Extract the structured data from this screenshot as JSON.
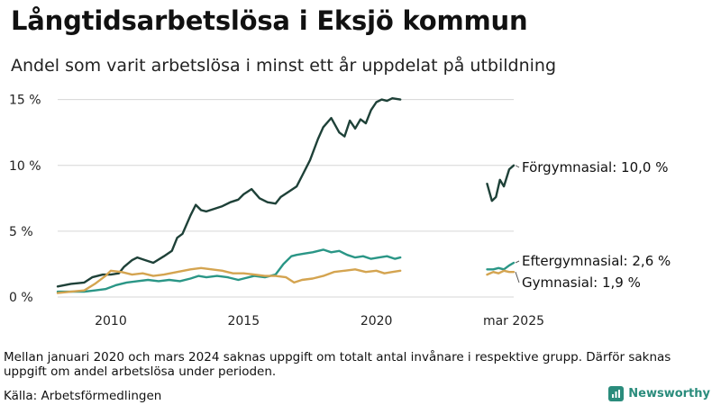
{
  "title": "Långtidsarbetslösa i Eksjö kommun",
  "subtitle": "Andel som varit arbetslösa i minst ett år uppdelat på utbildning",
  "note": "Mellan januari 2020 och mars 2024 saknas uppgift om totalt antal invånare i respektive grupp. Därför saknas uppgift om andel arbetslösa under perioden.",
  "source": "Källa: Arbetsförmedlingen",
  "brand": "Newsworthy",
  "colors": {
    "forgymnasial": "#1e4138",
    "eftergymnasial": "#2a9686",
    "gymnasial": "#d4a450",
    "grid": "#d6d6d6",
    "brand": "#2a8c7c"
  },
  "chart_data": {
    "type": "line",
    "ylim": [
      0,
      16
    ],
    "yticks": [
      0,
      5,
      10,
      15
    ],
    "ytick_labels": [
      "0 %",
      "5 %",
      "10 %",
      "15 %"
    ],
    "xticks": [
      2010,
      2015,
      2020,
      2025.17
    ],
    "xtick_labels": [
      "2010",
      "2015",
      "2020",
      "mar 2025"
    ],
    "grid": true,
    "series": [
      {
        "name": "Förgymnasial",
        "end_label": "Förgymnasial: 10,0 %",
        "color": "#1e4138",
        "segments": [
          {
            "x": [
              2008.0,
              2008.5,
              2009.0,
              2009.3,
              2009.7,
              2010.0,
              2010.3,
              2010.5,
              2010.8,
              2011.0,
              2011.3,
              2011.6,
              2012.0,
              2012.3,
              2012.5,
              2012.7,
              2013.0,
              2013.2,
              2013.4,
              2013.6,
              2013.9,
              2014.2,
              2014.5,
              2014.8,
              2015.0,
              2015.3,
              2015.6,
              2015.9,
              2016.2,
              2016.4,
              2016.7,
              2017.0,
              2017.2,
              2017.5,
              2017.8,
              2018.0,
              2018.3,
              2018.6,
              2018.8,
              2019.0,
              2019.2,
              2019.4,
              2019.6,
              2019.8,
              2020.0,
              2020.2,
              2020.4,
              2020.6,
              2020.9
            ],
            "y": [
              0.8,
              1.0,
              1.1,
              1.5,
              1.7,
              1.7,
              1.8,
              2.3,
              2.8,
              3.0,
              2.8,
              2.6,
              3.1,
              3.5,
              4.5,
              4.8,
              6.2,
              7.0,
              6.6,
              6.5,
              6.7,
              6.9,
              7.2,
              7.4,
              7.8,
              8.2,
              7.5,
              7.2,
              7.1,
              7.6,
              8.0,
              8.4,
              9.2,
              10.4,
              12.0,
              12.9,
              13.6,
              12.5,
              12.2,
              13.4,
              12.8,
              13.5,
              13.2,
              14.2,
              14.8,
              15.0,
              14.9,
              15.1,
              15.0
            ]
          },
          {
            "x": [
              2024.17,
              2024.35,
              2024.5,
              2024.65,
              2024.8,
              2025.0,
              2025.17
            ],
            "y": [
              8.6,
              7.3,
              7.6,
              8.9,
              8.4,
              9.7,
              10.0
            ]
          }
        ]
      },
      {
        "name": "Eftergymnasial",
        "end_label": "Eftergymnasial:  2,6 %",
        "color": "#2a9686",
        "segments": [
          {
            "x": [
              2008.0,
              2008.5,
              2009.0,
              2009.4,
              2009.8,
              2010.2,
              2010.6,
              2011.0,
              2011.4,
              2011.8,
              2012.2,
              2012.6,
              2013.0,
              2013.3,
              2013.6,
              2014.0,
              2014.4,
              2014.8,
              2015.0,
              2015.4,
              2015.8,
              2016.2,
              2016.5,
              2016.8,
              2017.0,
              2017.3,
              2017.6,
              2018.0,
              2018.3,
              2018.6,
              2018.9,
              2019.2,
              2019.5,
              2019.8,
              2020.1,
              2020.4,
              2020.7,
              2020.9
            ],
            "y": [
              0.4,
              0.4,
              0.4,
              0.5,
              0.6,
              0.9,
              1.1,
              1.2,
              1.3,
              1.2,
              1.3,
              1.2,
              1.4,
              1.6,
              1.5,
              1.6,
              1.5,
              1.3,
              1.4,
              1.6,
              1.5,
              1.7,
              2.5,
              3.1,
              3.2,
              3.3,
              3.4,
              3.6,
              3.4,
              3.5,
              3.2,
              3.0,
              3.1,
              2.9,
              3.0,
              3.1,
              2.9,
              3.0
            ]
          },
          {
            "x": [
              2024.17,
              2024.4,
              2024.6,
              2024.8,
              2025.0,
              2025.17
            ],
            "y": [
              2.1,
              2.1,
              2.2,
              2.1,
              2.4,
              2.6
            ]
          }
        ]
      },
      {
        "name": "Gymnasial",
        "end_label": "Gymnasial:  1,9 %",
        "color": "#d4a450",
        "segments": [
          {
            "x": [
              2008.0,
              2008.5,
              2009.0,
              2009.4,
              2009.8,
              2010.0,
              2010.4,
              2010.8,
              2011.2,
              2011.6,
              2012.0,
              2012.5,
              2013.0,
              2013.4,
              2013.8,
              2014.2,
              2014.6,
              2015.0,
              2015.4,
              2015.8,
              2016.2,
              2016.6,
              2016.9,
              2017.2,
              2017.6,
              2018.0,
              2018.4,
              2018.8,
              2019.2,
              2019.6,
              2020.0,
              2020.3,
              2020.6,
              2020.9
            ],
            "y": [
              0.3,
              0.4,
              0.5,
              1.0,
              1.6,
              2.0,
              1.9,
              1.7,
              1.8,
              1.6,
              1.7,
              1.9,
              2.1,
              2.2,
              2.1,
              2.0,
              1.8,
              1.8,
              1.7,
              1.6,
              1.6,
              1.5,
              1.1,
              1.3,
              1.4,
              1.6,
              1.9,
              2.0,
              2.1,
              1.9,
              2.0,
              1.8,
              1.9,
              2.0
            ]
          },
          {
            "x": [
              2024.17,
              2024.4,
              2024.6,
              2024.8,
              2025.0,
              2025.17
            ],
            "y": [
              1.7,
              1.9,
              1.8,
              2.0,
              1.9,
              1.9
            ]
          }
        ]
      }
    ]
  }
}
